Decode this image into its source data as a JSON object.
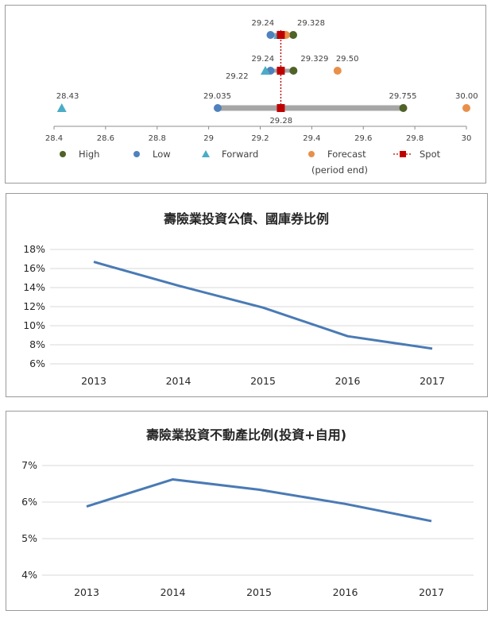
{
  "colors": {
    "high": "#4f6228",
    "low": "#4f81bd",
    "forward": "#4bacc6",
    "forecast": "#e8904a",
    "spot": "#c00000",
    "bar": "#a6a6a6",
    "line": "#4a7ab5",
    "grid": "#d9d9d9",
    "axis": "#8c8c8c"
  },
  "chart_data": [
    {
      "type": "scatter",
      "title": "",
      "xlim": [
        28.4,
        30
      ],
      "xticks": [
        "28.4",
        "28.6",
        "28.8",
        "29",
        "29.2",
        "29.4",
        "29.6",
        "29.8",
        "30"
      ],
      "legend": [
        {
          "name": "High",
          "marker": "circle",
          "color_key": "high"
        },
        {
          "name": "Low",
          "marker": "circle",
          "color_key": "low"
        },
        {
          "name": "Forward",
          "marker": "triangle",
          "color_key": "forward"
        },
        {
          "name": "Forecast",
          "marker": "circle",
          "color_key": "forecast",
          "sub": "(period end)"
        },
        {
          "name": "Spot",
          "marker": "square-dotted",
          "color_key": "spot"
        }
      ],
      "rows": [
        {
          "name": "row1",
          "high": 29.328,
          "low": 29.24,
          "forward": 29.27,
          "forecast": 29.3,
          "spot": 29.28,
          "labels": [
            {
              "text": "29.24",
              "x": 29.24
            },
            {
              "text": "29.328",
              "x": 29.328
            }
          ]
        },
        {
          "name": "row2",
          "high": 29.329,
          "low": 29.24,
          "forward": 29.22,
          "forecast": 29.5,
          "spot": 29.28,
          "labels": [
            {
              "text": "29.24",
              "x": 29.24
            },
            {
              "text": "29.22",
              "x": 29.22
            },
            {
              "text": "29.329",
              "x": 29.329
            },
            {
              "text": "29.50",
              "x": 29.5
            }
          ]
        },
        {
          "name": "row3",
          "high": 29.755,
          "low": 29.035,
          "forward": 28.43,
          "forecast": 30.0,
          "spot": 29.28,
          "labels": [
            {
              "text": "28.43",
              "x": 28.43
            },
            {
              "text": "29.035",
              "x": 29.035
            },
            {
              "text": "29.755",
              "x": 29.755
            },
            {
              "text": "30.00",
              "x": 30.0
            },
            {
              "text": "29.28",
              "x": 29.28
            }
          ]
        }
      ]
    },
    {
      "type": "line",
      "title": "壽險業投資公債、國庫券比例",
      "categories": [
        "2013",
        "2014",
        "2015",
        "2016",
        "2017"
      ],
      "values": [
        16.7,
        14.2,
        11.9,
        8.9,
        7.6
      ],
      "yticks": [
        "6%",
        "8%",
        "10%",
        "12%",
        "14%",
        "16%",
        "18%"
      ],
      "ylim": [
        6,
        18
      ]
    },
    {
      "type": "line",
      "title": "壽險業投資不動產比例(投資+自用)",
      "categories": [
        "2013",
        "2014",
        "2015",
        "2016",
        "2017"
      ],
      "values": [
        5.88,
        6.62,
        6.34,
        5.95,
        5.48
      ],
      "yticks": [
        "4%",
        "5%",
        "6%",
        "7%"
      ],
      "ylim": [
        4,
        7
      ]
    }
  ]
}
